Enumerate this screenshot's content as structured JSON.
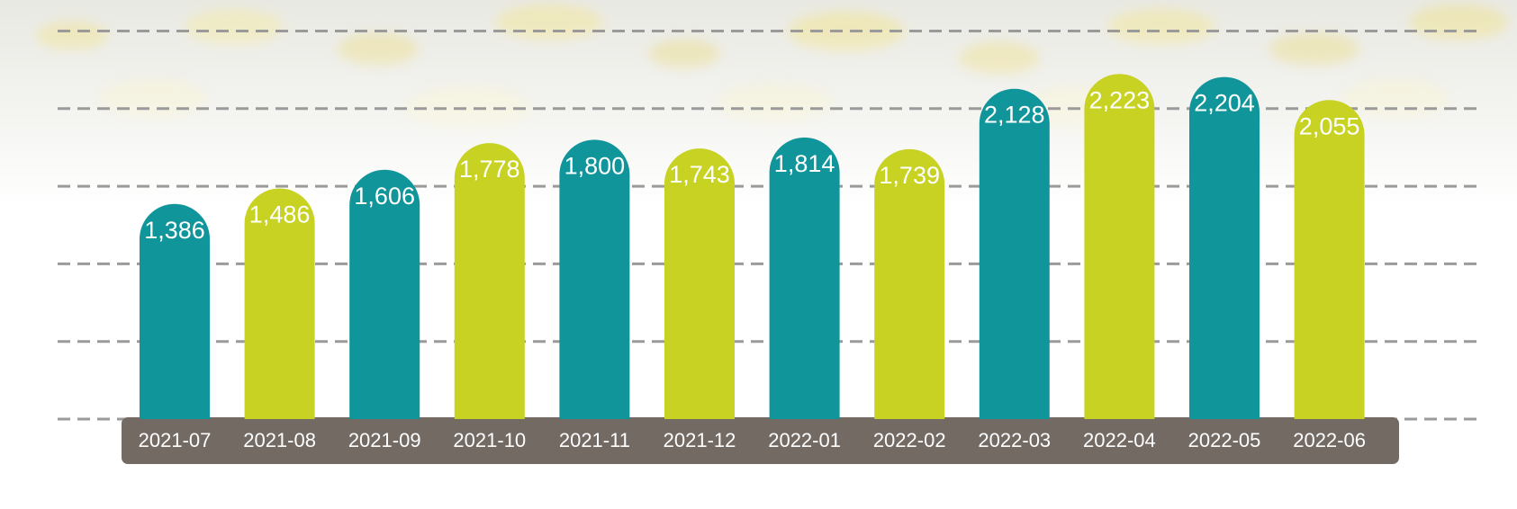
{
  "colors": {
    "teal": "#10959a",
    "lime": "#c8d223",
    "axis_band": "#736a64",
    "gridline": "#9a9a9a",
    "label_text": "#ffffff"
  },
  "chart_data": {
    "type": "bar",
    "categories": [
      "2021-07",
      "2021-08",
      "2021-09",
      "2021-10",
      "2021-11",
      "2021-12",
      "2022-01",
      "2022-02",
      "2022-03",
      "2022-04",
      "2022-05",
      "2022-06"
    ],
    "values": [
      1386,
      1486,
      1606,
      1778,
      1800,
      1743,
      1814,
      1739,
      2128,
      2223,
      2204,
      2055
    ],
    "value_labels": [
      "1,386",
      "1,486",
      "1,606",
      "1,778",
      "1,800",
      "1,743",
      "1,814",
      "1,739",
      "2,128",
      "2,223",
      "2,204",
      "2,055"
    ],
    "bar_colors": [
      "teal",
      "lime",
      "teal",
      "lime",
      "teal",
      "lime",
      "teal",
      "lime",
      "teal",
      "lime",
      "teal",
      "lime"
    ],
    "title": "",
    "xlabel": "",
    "ylabel": "",
    "ylim": [
      0,
      2500
    ],
    "grid": true,
    "legend": "none"
  }
}
